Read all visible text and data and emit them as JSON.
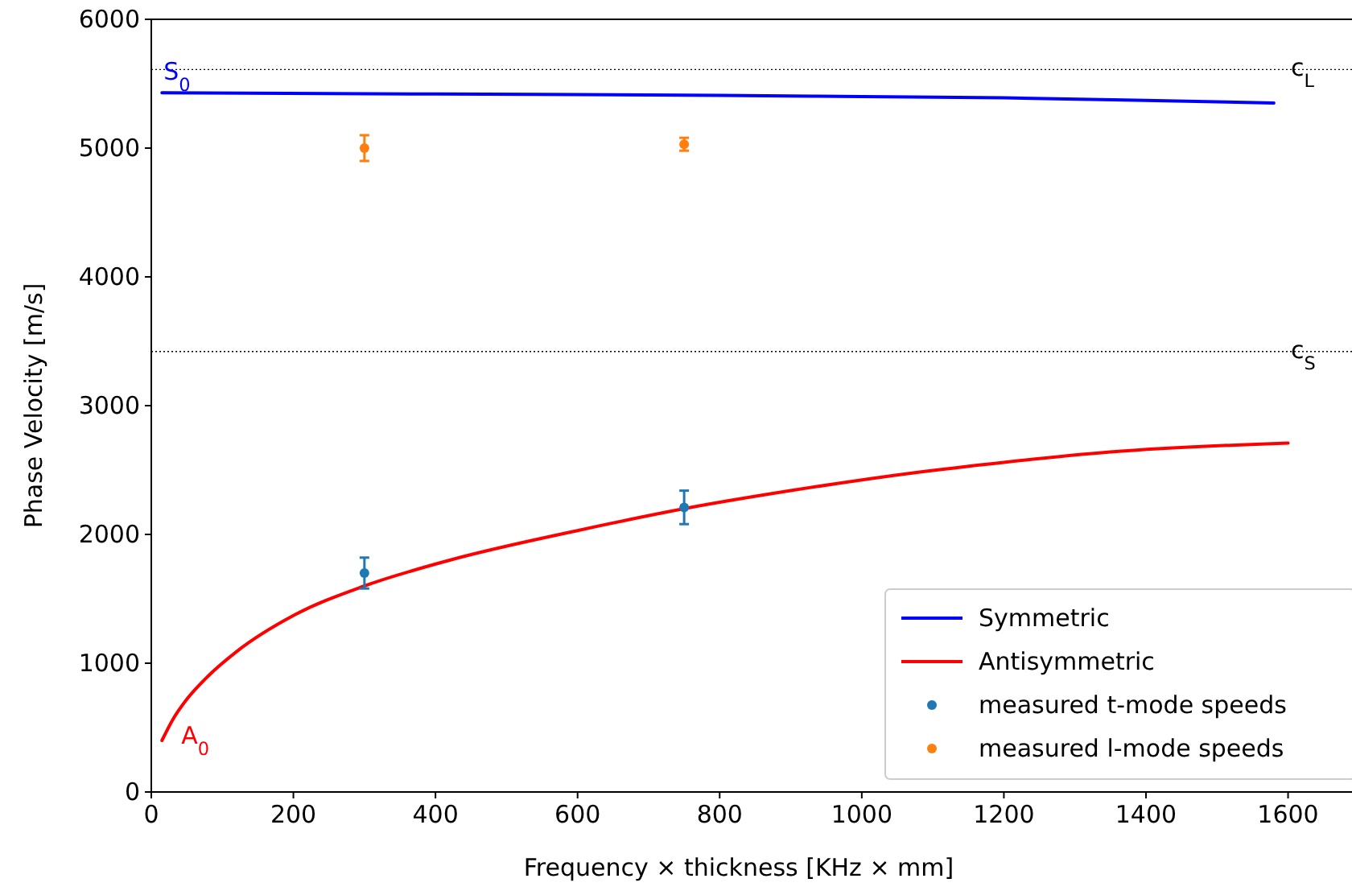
{
  "chart_data": {
    "type": "line",
    "xlabel": "Frequency × thickness [KHz × mm]",
    "ylabel": "Phase Velocity [m/s]",
    "xlim": [
      0,
      1690
    ],
    "ylim": [
      0,
      6000
    ],
    "xticks": [
      0,
      200,
      400,
      600,
      800,
      1000,
      1200,
      1400,
      1600
    ],
    "yticks": [
      0,
      1000,
      2000,
      3000,
      4000,
      5000,
      6000
    ],
    "grid": false,
    "legend": "bottom right",
    "line_style": "solid",
    "series": [
      {
        "name": "Symmetric",
        "color": "#0000ff",
        "x": [
          15,
          400,
          800,
          1000,
          1200,
          1400,
          1580
        ],
        "values": [
          5430,
          5420,
          5410,
          5400,
          5390,
          5370,
          5350
        ]
      },
      {
        "name": "Antisymmetric",
        "color": "#ff0000",
        "x": [
          15,
          30,
          50,
          80,
          120,
          200,
          300,
          420,
          600,
          750,
          900,
          1075,
          1200,
          1350,
          1600
        ],
        "values": [
          400,
          560,
          720,
          900,
          1090,
          1370,
          1600,
          1800,
          2030,
          2200,
          2340,
          2480,
          2560,
          2640,
          2710
        ]
      },
      {
        "name": "measured t-mode speeds",
        "type": "scatter",
        "marker": "circle",
        "color": "#1f77b4",
        "x": [
          300,
          750
        ],
        "values": [
          1700,
          2210
        ],
        "errors": [
          120,
          130
        ]
      },
      {
        "name": "measured l-mode speeds",
        "type": "scatter",
        "marker": "circle",
        "color": "#ff7f0e",
        "x": [
          300,
          750
        ],
        "values": [
          5000,
          5030
        ],
        "errors": [
          100,
          50
        ]
      }
    ],
    "ref_lines": [
      {
        "axis": "y",
        "value": 5610,
        "label": "c$_{L}$",
        "color": "#000000",
        "line_style": "dotted"
      },
      {
        "axis": "y",
        "value": 3420,
        "label": "c$_{S}$",
        "color": "#000000",
        "line_style": "dotted"
      }
    ],
    "annotations": [
      "S$_{0}$",
      "A$_{0}$"
    ]
  }
}
